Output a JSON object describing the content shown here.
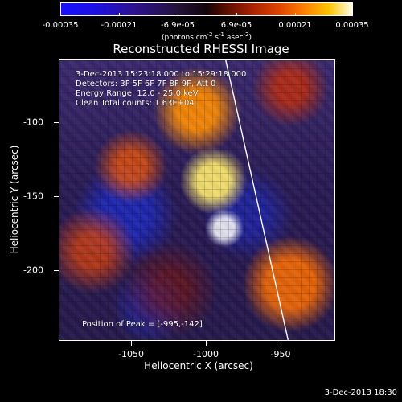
{
  "colorbar": {
    "tick_labels": [
      "-0.00035",
      "-0.00021",
      "-6.9e-05",
      "6.9e-05",
      "0.00021",
      "0.00035"
    ],
    "units": {
      "prefix": "(photons cm",
      "cm_exp": "-2",
      "s_text": " s",
      "s_exp": "-1",
      "asec_text": " asec",
      "asec_exp": "-2",
      "suffix": ")"
    }
  },
  "plot": {
    "title": "Reconstructed RHESSI Image",
    "x_ticks": [
      "-1050",
      "-1000",
      "-950"
    ],
    "y_ticks": [
      "-100",
      "-150",
      "-200"
    ],
    "x_axis_label": "Heliocentric X (arcsec)",
    "y_axis_label": "Heliocentric Y (arcsec)",
    "info": {
      "time_range": "3-Dec-2013 15:23:18.000 to 15:29:18.000",
      "detectors": "Detectors: 3F 5F 6F 7F 8F 9F, Att 0",
      "energy_range": "Energy Range: 12.0 - 25.0 keV",
      "clean_line": "Clean     Total counts: 1.63E+04",
      "peak_position": "Position of Peak = [-995,-142]"
    }
  },
  "footer": {
    "timestamp": "3-Dec-2013 18:30"
  }
}
